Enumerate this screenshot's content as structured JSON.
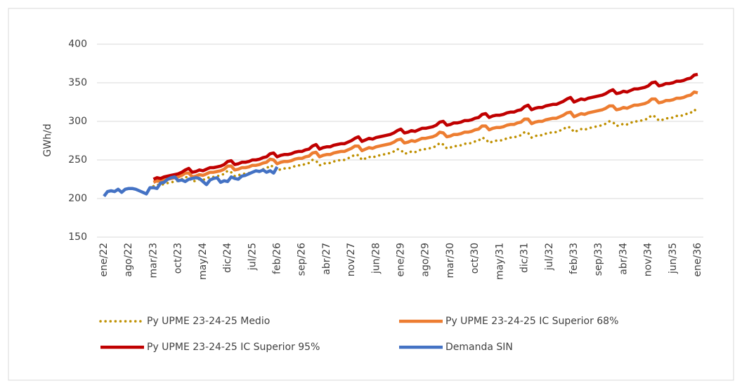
{
  "chart_data": {
    "type": "line",
    "y_label": "GWh/d",
    "ylim": [
      150,
      400
    ],
    "yticks": [
      150,
      200,
      250,
      300,
      350,
      400
    ],
    "grid": true,
    "legend": "bottom",
    "categories": [
      "ene/22",
      null,
      null,
      null,
      null,
      null,
      null,
      "ago/22",
      null,
      null,
      null,
      null,
      null,
      null,
      "mar/23",
      null,
      null,
      null,
      null,
      null,
      null,
      "oct/23",
      null,
      null,
      null,
      null,
      null,
      null,
      "may/24",
      null,
      null,
      null,
      null,
      null,
      null,
      "dic/24",
      null,
      null,
      null,
      null,
      null,
      null,
      "jul/25",
      null,
      null,
      null,
      null,
      null,
      null,
      "feb/26",
      null,
      null,
      null,
      null,
      null,
      null,
      "sep/26",
      null,
      null,
      null,
      null,
      null,
      null,
      "abr/27",
      null,
      null,
      null,
      null,
      null,
      null,
      "nov/27",
      null,
      null,
      null,
      null,
      null,
      null,
      "jun/28",
      null,
      null,
      null,
      null,
      null,
      null,
      "ene/29",
      null,
      null,
      null,
      null,
      null,
      null,
      "ago/29",
      null,
      null,
      null,
      null,
      null,
      null,
      "mar/30",
      null,
      null,
      null,
      null,
      null,
      null,
      "oct/30",
      null,
      null,
      null,
      null,
      null,
      null,
      "may/31",
      null,
      null,
      null,
      null,
      null,
      null,
      "dic/31",
      null,
      null,
      null,
      null,
      null,
      null,
      "jul/32",
      null,
      null,
      null,
      null,
      null,
      null,
      "feb/33",
      null,
      null,
      null,
      null,
      null,
      null,
      "sep/33",
      null,
      null,
      null,
      null,
      null,
      null,
      "abr/34",
      null,
      null,
      null,
      null,
      null,
      null,
      "nov/34",
      null,
      null,
      null,
      null,
      null,
      null,
      "jun/35",
      null,
      null,
      null,
      null,
      null,
      null,
      "ene/36"
    ],
    "series": [
      {
        "name": "Py UPME 23-24-25 Medio",
        "color": "#bf9000",
        "style": "dotted",
        "values": [
          null,
          null,
          null,
          null,
          null,
          null,
          null,
          null,
          null,
          null,
          null,
          null,
          null,
          null,
          216,
          218,
          217,
          219,
          220,
          221,
          222,
          223,
          225,
          228,
          227,
          222,
          223,
          225,
          224,
          226,
          228,
          228,
          229,
          230,
          232,
          236,
          234,
          229,
          230,
          232,
          232,
          233,
          235,
          235,
          236,
          238,
          239,
          243,
          241,
          236,
          238,
          239,
          239,
          240,
          242,
          243,
          243,
          245,
          246,
          250,
          249,
          243,
          245,
          246,
          246,
          248,
          249,
          250,
          250,
          252,
          254,
          257,
          256,
          250,
          252,
          254,
          253,
          255,
          256,
          257,
          258,
          259,
          261,
          264,
          263,
          258,
          259,
          261,
          260,
          262,
          264,
          264,
          265,
          266,
          268,
          272,
          270,
          265,
          266,
          268,
          268,
          269,
          271,
          271,
          272,
          274,
          275,
          279,
          277,
          272,
          274,
          275,
          275,
          276,
          278,
          279,
          279,
          281,
          282,
          286,
          285,
          279,
          281,
          282,
          282,
          284,
          285,
          286,
          286,
          288,
          290,
          293,
          292,
          286,
          288,
          290,
          289,
          291,
          292,
          293,
          294,
          295,
          297,
          300,
          299,
          294,
          295,
          297,
          296,
          298,
          300,
          300,
          301,
          302,
          304,
          308,
          306,
          301,
          302,
          304,
          304,
          305,
          307,
          307,
          308,
          310,
          311,
          315,
          313
        ]
      },
      {
        "name": "Py UPME 23-24-25 IC Superior 68%",
        "color": "#ed7d31",
        "style": "solid",
        "values": [
          null,
          null,
          null,
          null,
          null,
          null,
          null,
          null,
          null,
          null,
          null,
          null,
          null,
          null,
          221,
          223,
          222,
          224,
          225,
          226,
          227,
          228,
          230,
          233,
          233,
          228,
          229,
          231,
          230,
          232,
          234,
          234,
          235,
          236,
          238,
          242,
          242,
          237,
          238,
          240,
          240,
          241,
          243,
          243,
          244,
          246,
          247,
          251,
          250,
          245,
          247,
          248,
          248,
          249,
          251,
          252,
          252,
          254,
          255,
          259,
          260,
          254,
          256,
          257,
          257,
          259,
          260,
          261,
          261,
          263,
          265,
          268,
          268,
          262,
          264,
          266,
          265,
          267,
          268,
          269,
          270,
          271,
          273,
          276,
          277,
          272,
          273,
          275,
          274,
          276,
          278,
          278,
          279,
          280,
          282,
          286,
          285,
          280,
          281,
          283,
          283,
          284,
          286,
          286,
          287,
          289,
          290,
          294,
          294,
          289,
          291,
          292,
          292,
          293,
          295,
          296,
          296,
          298,
          299,
          303,
          303,
          297,
          299,
          300,
          300,
          302,
          303,
          304,
          304,
          306,
          308,
          311,
          312,
          306,
          308,
          310,
          309,
          311,
          312,
          313,
          314,
          315,
          317,
          320,
          320,
          315,
          316,
          318,
          317,
          319,
          321,
          321,
          322,
          323,
          325,
          329,
          329,
          324,
          325,
          327,
          327,
          328,
          330,
          330,
          331,
          333,
          334,
          338,
          337
        ]
      },
      {
        "name": "Py UPME 23-24-25 IC Superior 95%",
        "color": "#c00000",
        "style": "solid",
        "values": [
          null,
          null,
          null,
          null,
          null,
          null,
          null,
          null,
          null,
          null,
          null,
          null,
          null,
          null,
          225,
          227,
          226,
          228,
          229,
          230,
          231,
          232,
          234,
          237,
          239,
          234,
          235,
          237,
          236,
          238,
          240,
          240,
          241,
          242,
          244,
          248,
          249,
          244,
          245,
          247,
          247,
          248,
          250,
          250,
          251,
          253,
          254,
          258,
          259,
          254,
          256,
          257,
          257,
          258,
          260,
          261,
          261,
          263,
          264,
          268,
          270,
          264,
          266,
          267,
          267,
          269,
          270,
          271,
          271,
          273,
          275,
          278,
          280,
          274,
          276,
          278,
          277,
          279,
          280,
          281,
          282,
          283,
          285,
          288,
          290,
          285,
          286,
          288,
          287,
          289,
          291,
          291,
          292,
          293,
          295,
          299,
          300,
          295,
          296,
          298,
          298,
          299,
          301,
          301,
          302,
          304,
          305,
          309,
          310,
          305,
          307,
          308,
          308,
          309,
          311,
          312,
          312,
          314,
          315,
          319,
          321,
          315,
          317,
          318,
          318,
          320,
          321,
          322,
          322,
          324,
          326,
          329,
          331,
          325,
          327,
          329,
          328,
          330,
          331,
          332,
          333,
          334,
          336,
          339,
          341,
          336,
          337,
          339,
          338,
          340,
          342,
          342,
          343,
          344,
          346,
          350,
          351,
          346,
          347,
          349,
          349,
          350,
          352,
          352,
          353,
          355,
          356,
          360,
          361
        ]
      },
      {
        "name": "Demanda SIN",
        "color": "#4472c4",
        "style": "solid",
        "values": [
          203,
          209,
          210,
          209,
          212,
          208,
          212,
          213,
          213,
          212,
          210,
          208,
          206,
          214,
          214,
          213,
          220,
          221,
          225,
          227,
          228,
          223,
          224,
          222,
          225,
          226,
          227,
          226,
          222,
          218,
          224,
          226,
          227,
          221,
          223,
          222,
          228,
          226,
          225,
          229,
          230,
          232,
          234,
          236,
          235,
          237,
          234,
          236,
          233,
          241,
          null,
          null,
          null,
          null,
          null,
          null,
          null,
          null,
          null,
          null,
          null,
          null,
          null,
          null,
          null,
          null,
          null,
          null,
          null,
          null,
          null,
          null,
          null,
          null,
          null,
          null,
          null,
          null,
          null,
          null,
          null,
          null,
          null,
          null,
          null,
          null,
          null,
          null,
          null,
          null,
          null,
          null,
          null,
          null,
          null,
          null,
          null,
          null,
          null,
          null,
          null,
          null,
          null,
          null,
          null,
          null,
          null,
          null,
          null,
          null,
          null,
          null,
          null,
          null,
          null,
          null,
          null,
          null,
          null,
          null,
          null,
          null,
          null,
          null,
          null,
          null,
          null,
          null,
          null,
          null,
          null,
          null,
          null,
          null,
          null,
          null,
          null,
          null,
          null,
          null,
          null,
          null,
          null,
          null,
          null,
          null,
          null,
          null,
          null,
          null,
          null,
          null,
          null,
          null,
          null,
          null,
          null,
          null,
          null,
          null,
          null,
          null,
          null,
          null,
          null,
          null,
          null,
          null,
          null
        ]
      }
    ]
  }
}
